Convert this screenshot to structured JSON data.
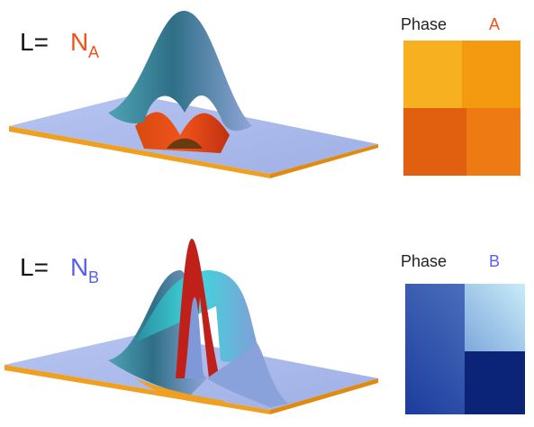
{
  "panels": [
    {
      "prefix": "L=",
      "symbol": "N",
      "subscript": "A",
      "phase_label": "Phase",
      "phase_letter": "A"
    },
    {
      "prefix": "L=",
      "symbol": "N",
      "subscript": "B",
      "phase_label": "Phase",
      "phase_letter": "B"
    }
  ]
}
